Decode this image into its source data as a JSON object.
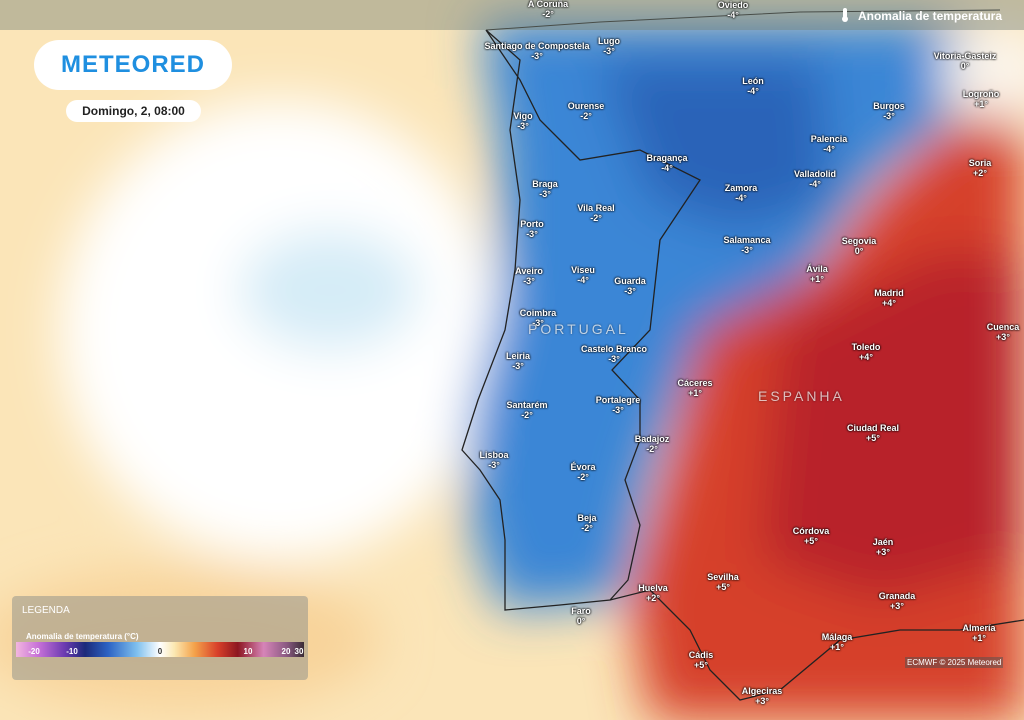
{
  "header": {
    "logo": "METEORED",
    "date": "Domingo, 2, 08:00",
    "layer": "Anomalia de temperatura"
  },
  "countries": [
    "PORTUGAL",
    "ESPANHA"
  ],
  "cities": [
    {
      "name": "A Coruña",
      "value": "-2°"
    },
    {
      "name": "Oviedo",
      "value": "-4°"
    },
    {
      "name": "Santiago de Compostela",
      "value": "-3°"
    },
    {
      "name": "Lugo",
      "value": "-3°"
    },
    {
      "name": "Vitoria-Gasteiz",
      "value": "0°"
    },
    {
      "name": "León",
      "value": "-4°"
    },
    {
      "name": "Logroño",
      "value": "+1°"
    },
    {
      "name": "Ourense",
      "value": "-2°"
    },
    {
      "name": "Burgos",
      "value": "-3°"
    },
    {
      "name": "Vigo",
      "value": "-3°"
    },
    {
      "name": "Palencia",
      "value": "-4°"
    },
    {
      "name": "Bragança",
      "value": "-4°"
    },
    {
      "name": "Soria",
      "value": "+2°"
    },
    {
      "name": "Valladolid",
      "value": "-4°"
    },
    {
      "name": "Braga",
      "value": "-3°"
    },
    {
      "name": "Zamora",
      "value": "-4°"
    },
    {
      "name": "Vila Real",
      "value": "-2°"
    },
    {
      "name": "Porto",
      "value": "-3°"
    },
    {
      "name": "Segovia",
      "value": "0°"
    },
    {
      "name": "Salamanca",
      "value": "-3°"
    },
    {
      "name": "Ávila",
      "value": "+1°"
    },
    {
      "name": "Aveiro",
      "value": "-3°"
    },
    {
      "name": "Viseu",
      "value": "-4°"
    },
    {
      "name": "Guarda",
      "value": "-3°"
    },
    {
      "name": "Madrid",
      "value": "+4°"
    },
    {
      "name": "Coimbra",
      "value": "-3°"
    },
    {
      "name": "Cuenca",
      "value": "+3°"
    },
    {
      "name": "Castelo Branco",
      "value": "-3°"
    },
    {
      "name": "Toledo",
      "value": "+4°"
    },
    {
      "name": "Leiria",
      "value": "-3°"
    },
    {
      "name": "Cáceres",
      "value": "+1°"
    },
    {
      "name": "Santarém",
      "value": "-2°"
    },
    {
      "name": "Portalegre",
      "value": "-3°"
    },
    {
      "name": "Ciudad Real",
      "value": "+5°"
    },
    {
      "name": "Badajoz",
      "value": "-2°"
    },
    {
      "name": "Lisboa",
      "value": "-3°"
    },
    {
      "name": "Évora",
      "value": "-2°"
    },
    {
      "name": "Beja",
      "value": "-2°"
    },
    {
      "name": "Córdova",
      "value": "+5°"
    },
    {
      "name": "Jaén",
      "value": "+3°"
    },
    {
      "name": "Sevilha",
      "value": "+5°"
    },
    {
      "name": "Huelva",
      "value": "+2°"
    },
    {
      "name": "Granada",
      "value": "+3°"
    },
    {
      "name": "Faro",
      "value": "0°"
    },
    {
      "name": "Almería",
      "value": "+1°"
    },
    {
      "name": "Málaga",
      "value": "+1°"
    },
    {
      "name": "Cádis",
      "value": "+5°"
    },
    {
      "name": "Algeciras",
      "value": "+3°"
    }
  ],
  "legend": {
    "title": "LEGENDA",
    "subtitle": "Anomalia de temperatura (°C)",
    "ticks": [
      "-20",
      "-10",
      "0",
      "10",
      "20",
      "30"
    ]
  },
  "credit": "ECMWF © 2025 Meteored"
}
